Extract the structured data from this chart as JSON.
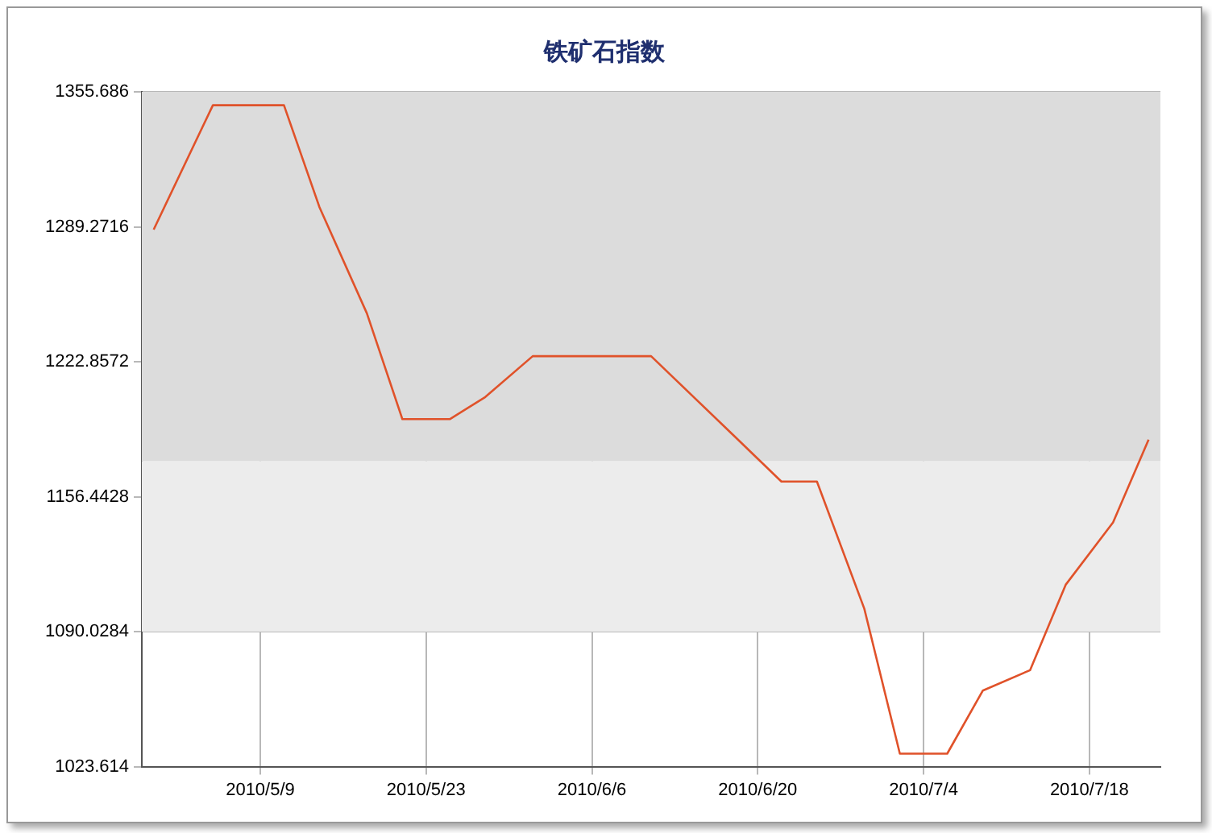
{
  "chart_data": {
    "type": "line",
    "title": "铁矿石指数",
    "x": [
      "2010-04-30",
      "2010-05-05",
      "2010-05-11",
      "2010-05-14",
      "2010-05-18",
      "2010-05-21",
      "2010-05-25",
      "2010-05-28",
      "2010-06-01",
      "2010-06-11",
      "2010-06-18",
      "2010-06-22",
      "2010-06-25",
      "2010-06-29",
      "2010-07-02",
      "2010-07-06",
      "2010-07-09",
      "2010-07-13",
      "2010-07-16",
      "2010-07-20",
      "2010-07-23"
    ],
    "series": [
      {
        "color": "#e0522a",
        "values": [
          1287.9,
          1349.1,
          1349.1,
          1298.9,
          1246.7,
          1194.6,
          1194.6,
          1205.5,
          1225.6,
          1225.6,
          1186.4,
          1163.9,
          1163.9,
          1101.3,
          1030.0,
          1030.0,
          1061.0,
          1071.1,
          1113.1,
          1143.8,
          1184.5
        ]
      }
    ],
    "xlim": [
      "2010-04-29",
      "2010-07-24"
    ],
    "xticks": [
      {
        "value": "2010-05-09",
        "label": "2010/5/9"
      },
      {
        "value": "2010-05-23",
        "label": "2010/5/23"
      },
      {
        "value": "2010-06-06",
        "label": "2010/6/6"
      },
      {
        "value": "2010-06-20",
        "label": "2010/6/20"
      },
      {
        "value": "2010-07-04",
        "label": "2010/7/4"
      },
      {
        "value": "2010-07-18",
        "label": "2010/7/18"
      }
    ],
    "ylim": [
      1023.614,
      1355.686
    ],
    "yticks": [
      1023.614,
      1090.0284,
      1156.4428,
      1222.8572,
      1289.2716,
      1355.686
    ],
    "bands": [
      {
        "axis": "y",
        "from": 1090.0284,
        "to": 1174.0,
        "color": "#ececec"
      },
      {
        "axis": "y",
        "from": 1174.0,
        "to": 1355.686,
        "color": "#dcdcdc"
      }
    ],
    "grid": true,
    "legend": false,
    "marker": "none",
    "line_style": "solid"
  }
}
